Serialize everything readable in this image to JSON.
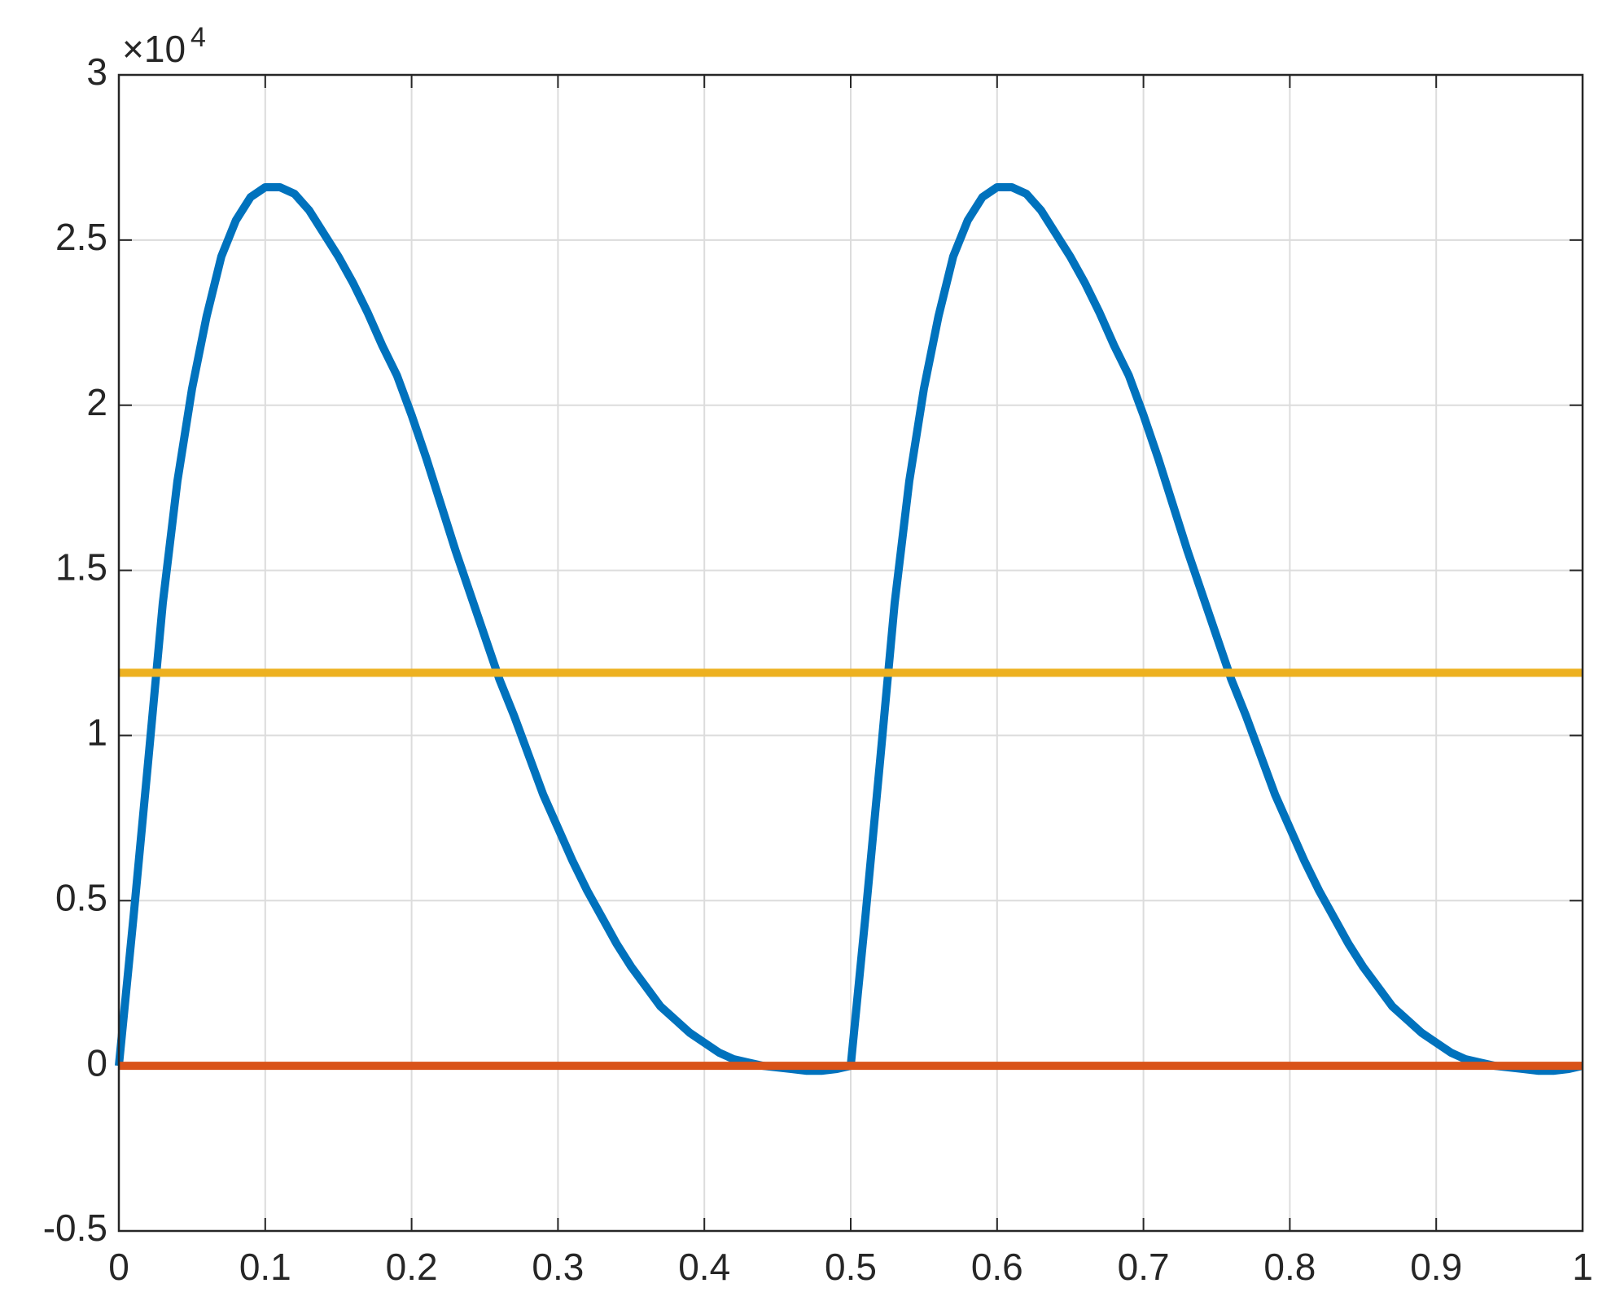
{
  "chart_data": {
    "type": "line",
    "y_exponent": {
      "base": "×10",
      "power": "4"
    },
    "xlim": [
      0,
      1
    ],
    "xticks": [
      0,
      0.1,
      0.2,
      0.3,
      0.4,
      0.5,
      0.6,
      0.7,
      0.8,
      0.9,
      1
    ],
    "ylim": [
      -0.5,
      3
    ],
    "yticks": [
      -0.5,
      0,
      0.5,
      1,
      1.5,
      2,
      2.5,
      3
    ],
    "grid": true,
    "series": [
      {
        "color": "#0072BD",
        "x": [
          0,
          0.01,
          0.02,
          0.03,
          0.04,
          0.05,
          0.06,
          0.07,
          0.08,
          0.09,
          0.1,
          0.11,
          0.12,
          0.13,
          0.14,
          0.15,
          0.16,
          0.17,
          0.18,
          0.19,
          0.2,
          0.21,
          0.22,
          0.23,
          0.24,
          0.25,
          0.26,
          0.27,
          0.28,
          0.29,
          0.3,
          0.31,
          0.32,
          0.33,
          0.34,
          0.35,
          0.36,
          0.37,
          0.38,
          0.39,
          0.4,
          0.41,
          0.42,
          0.43,
          0.44,
          0.45,
          0.46,
          0.47,
          0.48,
          0.49,
          0.5,
          0.51,
          0.52,
          0.53,
          0.54,
          0.55,
          0.56,
          0.57,
          0.58,
          0.59,
          0.6,
          0.61,
          0.62,
          0.63,
          0.64,
          0.65,
          0.66,
          0.67,
          0.68,
          0.69,
          0.7,
          0.71,
          0.72,
          0.73,
          0.74,
          0.75,
          0.76,
          0.77,
          0.78,
          0.79,
          0.8,
          0.81,
          0.82,
          0.83,
          0.84,
          0.85,
          0.86,
          0.87,
          0.88,
          0.89,
          0.9,
          0.91,
          0.92,
          0.93,
          0.94,
          0.95,
          0.96,
          0.97,
          0.98,
          0.99,
          1
        ],
        "values": [
          0,
          0.45,
          0.92,
          1.4,
          1.77,
          2.05,
          2.27,
          2.45,
          2.56,
          2.63,
          2.66,
          2.66,
          2.64,
          2.59,
          2.52,
          2.45,
          2.37,
          2.28,
          2.18,
          2.09,
          1.97,
          1.84,
          1.7,
          1.56,
          1.43,
          1.3,
          1.17,
          1.06,
          0.94,
          0.82,
          0.72,
          0.62,
          0.53,
          0.45,
          0.37,
          0.3,
          0.24,
          0.18,
          0.14,
          0.1,
          0.07,
          0.04,
          0.02,
          0.01,
          0,
          -0.005,
          -0.01,
          -0.015,
          -0.015,
          -0.01,
          0,
          0.45,
          0.92,
          1.4,
          1.77,
          2.05,
          2.27,
          2.45,
          2.56,
          2.63,
          2.66,
          2.66,
          2.64,
          2.59,
          2.52,
          2.45,
          2.37,
          2.28,
          2.18,
          2.09,
          1.97,
          1.84,
          1.7,
          1.56,
          1.43,
          1.3,
          1.17,
          1.06,
          0.94,
          0.82,
          0.72,
          0.62,
          0.53,
          0.45,
          0.37,
          0.3,
          0.24,
          0.18,
          0.14,
          0.1,
          0.07,
          0.04,
          0.02,
          0.01,
          0,
          -0.005,
          -0.01,
          -0.015,
          -0.015,
          -0.01,
          0
        ]
      },
      {
        "color": "#D95319",
        "x": [
          0,
          1
        ],
        "values": [
          0,
          0
        ]
      },
      {
        "color": "#EDB120",
        "x": [
          0,
          1
        ],
        "values": [
          1.19,
          1.19
        ]
      }
    ]
  }
}
